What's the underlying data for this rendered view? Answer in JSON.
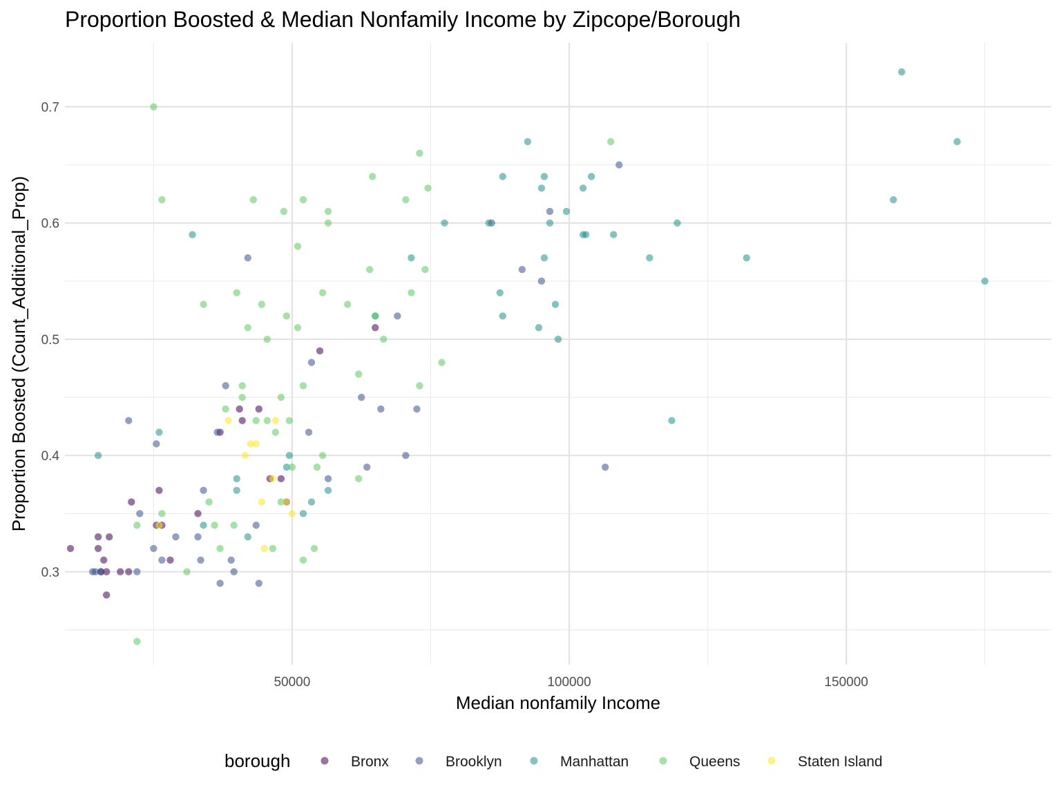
{
  "chart_data": {
    "type": "scatter",
    "title": "Proportion Boosted & Median Nonfamily Income by Zipcope/Borough",
    "xlabel": "Median nonfamily Income",
    "ylabel": "Proportion Boosted (Count_Additional_Prop)",
    "x_ticks": [
      50000,
      100000,
      150000
    ],
    "x_tick_labels": [
      "50000",
      "100000",
      "150000"
    ],
    "y_ticks": [
      0.3,
      0.4,
      0.5,
      0.6,
      0.7
    ],
    "y_tick_labels": [
      "0.3",
      "0.4",
      "0.5",
      "0.6",
      "0.7"
    ],
    "xlim": [
      9000,
      187000
    ],
    "ylim": [
      0.22,
      0.755
    ],
    "grid": true,
    "legend_title": "borough",
    "legend_position": "bottom",
    "series": [
      {
        "name": "Bronx",
        "color": "#440154",
        "points": [
          [
            10000,
            0.32
          ],
          [
            15000,
            0.33
          ],
          [
            15000,
            0.32
          ],
          [
            16000,
            0.31
          ],
          [
            17000,
            0.33
          ],
          [
            15500,
            0.3
          ],
          [
            16500,
            0.3
          ],
          [
            16500,
            0.28
          ],
          [
            19000,
            0.3
          ],
          [
            20500,
            0.3
          ],
          [
            21000,
            0.36
          ],
          [
            26000,
            0.37
          ],
          [
            25500,
            0.34
          ],
          [
            26500,
            0.34
          ],
          [
            28000,
            0.31
          ],
          [
            33000,
            0.35
          ],
          [
            37000,
            0.42
          ],
          [
            40500,
            0.44
          ],
          [
            41000,
            0.43
          ],
          [
            44000,
            0.44
          ],
          [
            46000,
            0.38
          ],
          [
            48000,
            0.38
          ],
          [
            49000,
            0.36
          ],
          [
            55000,
            0.49
          ],
          [
            65000,
            0.51
          ]
        ]
      },
      {
        "name": "Brooklyn",
        "color": "#3b528b",
        "points": [
          [
            14000,
            0.3
          ],
          [
            14500,
            0.3
          ],
          [
            15500,
            0.3
          ],
          [
            20500,
            0.43
          ],
          [
            22000,
            0.3
          ],
          [
            22500,
            0.35
          ],
          [
            25000,
            0.32
          ],
          [
            25500,
            0.41
          ],
          [
            26500,
            0.31
          ],
          [
            29000,
            0.33
          ],
          [
            33000,
            0.33
          ],
          [
            33500,
            0.31
          ],
          [
            34000,
            0.37
          ],
          [
            36500,
            0.42
          ],
          [
            37000,
            0.29
          ],
          [
            38000,
            0.46
          ],
          [
            39000,
            0.31
          ],
          [
            39500,
            0.3
          ],
          [
            42000,
            0.57
          ],
          [
            43500,
            0.34
          ],
          [
            44000,
            0.29
          ],
          [
            53000,
            0.42
          ],
          [
            53500,
            0.48
          ],
          [
            56500,
            0.38
          ],
          [
            62500,
            0.45
          ],
          [
            63500,
            0.39
          ],
          [
            66000,
            0.44
          ],
          [
            69000,
            0.52
          ],
          [
            70500,
            0.4
          ],
          [
            72500,
            0.44
          ],
          [
            86000,
            0.6
          ],
          [
            91500,
            0.56
          ],
          [
            95000,
            0.55
          ],
          [
            96500,
            0.61
          ],
          [
            106500,
            0.39
          ],
          [
            109000,
            0.65
          ]
        ]
      },
      {
        "name": "Manhattan",
        "color": "#21908d",
        "points": [
          [
            15000,
            0.4
          ],
          [
            26000,
            0.42
          ],
          [
            32000,
            0.59
          ],
          [
            34000,
            0.34
          ],
          [
            40000,
            0.38
          ],
          [
            40000,
            0.37
          ],
          [
            42000,
            0.33
          ],
          [
            49000,
            0.39
          ],
          [
            49500,
            0.4
          ],
          [
            52000,
            0.35
          ],
          [
            53500,
            0.36
          ],
          [
            56500,
            0.37
          ],
          [
            65000,
            0.52
          ],
          [
            71500,
            0.57
          ],
          [
            77500,
            0.6
          ],
          [
            85500,
            0.6
          ],
          [
            87500,
            0.54
          ],
          [
            88000,
            0.64
          ],
          [
            88000,
            0.52
          ],
          [
            92500,
            0.67
          ],
          [
            94500,
            0.51
          ],
          [
            95000,
            0.63
          ],
          [
            95500,
            0.64
          ],
          [
            95500,
            0.57
          ],
          [
            96500,
            0.6
          ],
          [
            97500,
            0.53
          ],
          [
            98000,
            0.5
          ],
          [
            99500,
            0.61
          ],
          [
            102500,
            0.63
          ],
          [
            102500,
            0.59
          ],
          [
            103000,
            0.59
          ],
          [
            104000,
            0.64
          ],
          [
            108000,
            0.59
          ],
          [
            114500,
            0.57
          ],
          [
            118500,
            0.43
          ],
          [
            119500,
            0.6
          ],
          [
            132000,
            0.57
          ],
          [
            158500,
            0.62
          ],
          [
            160000,
            0.73
          ],
          [
            170000,
            0.67
          ],
          [
            175000,
            0.55
          ]
        ]
      },
      {
        "name": "Queens",
        "color": "#5ec962",
        "points": [
          [
            22000,
            0.34
          ],
          [
            22000,
            0.24
          ],
          [
            25000,
            0.7
          ],
          [
            26500,
            0.62
          ],
          [
            26500,
            0.35
          ],
          [
            31000,
            0.3
          ],
          [
            34000,
            0.53
          ],
          [
            35000,
            0.36
          ],
          [
            36000,
            0.34
          ],
          [
            37000,
            0.32
          ],
          [
            38000,
            0.44
          ],
          [
            39500,
            0.34
          ],
          [
            40000,
            0.54
          ],
          [
            41000,
            0.46
          ],
          [
            41000,
            0.45
          ],
          [
            42000,
            0.51
          ],
          [
            43000,
            0.62
          ],
          [
            43500,
            0.43
          ],
          [
            44500,
            0.53
          ],
          [
            45500,
            0.5
          ],
          [
            45500,
            0.43
          ],
          [
            46500,
            0.32
          ],
          [
            47000,
            0.42
          ],
          [
            48000,
            0.45
          ],
          [
            48000,
            0.36
          ],
          [
            48500,
            0.61
          ],
          [
            49000,
            0.52
          ],
          [
            49500,
            0.43
          ],
          [
            50000,
            0.39
          ],
          [
            51000,
            0.51
          ],
          [
            51000,
            0.58
          ],
          [
            52000,
            0.46
          ],
          [
            52000,
            0.62
          ],
          [
            52000,
            0.31
          ],
          [
            54000,
            0.32
          ],
          [
            54500,
            0.39
          ],
          [
            55500,
            0.4
          ],
          [
            55500,
            0.54
          ],
          [
            56500,
            0.61
          ],
          [
            56500,
            0.6
          ],
          [
            60000,
            0.53
          ],
          [
            62000,
            0.47
          ],
          [
            62000,
            0.38
          ],
          [
            64000,
            0.56
          ],
          [
            64500,
            0.64
          ],
          [
            65000,
            0.52
          ],
          [
            66500,
            0.5
          ],
          [
            70500,
            0.62
          ],
          [
            71500,
            0.54
          ],
          [
            73000,
            0.46
          ],
          [
            73000,
            0.66
          ],
          [
            74000,
            0.56
          ],
          [
            74500,
            0.63
          ],
          [
            77000,
            0.48
          ],
          [
            107500,
            0.67
          ]
        ]
      },
      {
        "name": "Staten Island",
        "color": "#fde725",
        "points": [
          [
            26000,
            0.34
          ],
          [
            38500,
            0.43
          ],
          [
            41500,
            0.4
          ],
          [
            42500,
            0.41
          ],
          [
            43500,
            0.41
          ],
          [
            44500,
            0.36
          ],
          [
            45000,
            0.32
          ],
          [
            46500,
            0.38
          ],
          [
            47000,
            0.43
          ],
          [
            49000,
            0.36
          ],
          [
            50000,
            0.35
          ]
        ]
      }
    ]
  }
}
